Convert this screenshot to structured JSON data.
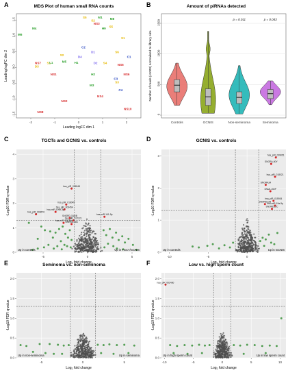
{
  "colors": {
    "panel_bg": "#ebebeb",
    "grid": "#ffffff",
    "up_dot": "#2e8b2e",
    "ns_dot": "#4d4d4d",
    "sig_dot": "#d62728",
    "guide": "#444444",
    "tgct_pink": "#e8706a",
    "gcnis_green": "#8aa51a",
    "nonsem_teal": "#1fb5b5",
    "sem_purple": "#c46adf"
  },
  "chart_data": [
    {
      "panel_letter": "A",
      "type": "scatter",
      "title": "MDS Plot of human small RNA counts",
      "xlabel": "Leading logFC dim 1",
      "ylabel": "Leading logFC dim 2",
      "xlim": [
        -2.6,
        2.6
      ],
      "ylim": [
        -1.6,
        1.7
      ],
      "xticks": [
        "-2",
        "-1",
        "0",
        "1",
        "2"
      ],
      "yticks": [
        "-1.5",
        "-1.0",
        "-0.5",
        "0.0",
        "0.5",
        "1.0",
        "1.5"
      ],
      "grid": false,
      "points": [
        {
          "label": "M1",
          "x": 0.9,
          "y": 1.55,
          "color": "#2ca02c"
        },
        {
          "label": "S5",
          "x": 0.25,
          "y": 1.55,
          "color": "#e6b800"
        },
        {
          "label": "S2",
          "x": 0.6,
          "y": 1.45,
          "color": "#e6b800"
        },
        {
          "label": "NS3",
          "x": 0.75,
          "y": 1.35,
          "color": "#d62728"
        },
        {
          "label": "M8",
          "x": 1.4,
          "y": 1.5,
          "color": "#2ca02c"
        },
        {
          "label": "M4",
          "x": -1.85,
          "y": 1.2,
          "color": "#2ca02c"
        },
        {
          "label": "M6",
          "x": -2.45,
          "y": 1.0,
          "color": "#2ca02c"
        },
        {
          "label": "H9",
          "x": 1.05,
          "y": 1.2,
          "color": "#2ca02c"
        },
        {
          "label": "S5",
          "x": 1.35,
          "y": 1.25,
          "color": "#e6b800"
        },
        {
          "label": "S1",
          "x": 1.85,
          "y": 0.9,
          "color": "#e6b800"
        },
        {
          "label": "C2",
          "x": 0.2,
          "y": 0.6,
          "color": "#1f3fbf"
        },
        {
          "label": "D1",
          "x": 0.6,
          "y": 0.45,
          "color": "#7b68ee"
        },
        {
          "label": "S6",
          "x": 1.6,
          "y": 0.45,
          "color": "#e6b800"
        },
        {
          "label": "C1",
          "x": 2.1,
          "y": 0.3,
          "color": "#1f3fbf"
        },
        {
          "label": "S4",
          "x": 1.1,
          "y": 0.1,
          "color": "#e6b800"
        },
        {
          "label": "D2",
          "x": 0.7,
          "y": 0.1,
          "color": "#7b68ee"
        },
        {
          "label": "NS7",
          "x": -1.7,
          "y": 0.1,
          "color": "#d62728"
        },
        {
          "label": "S1",
          "x": -1.25,
          "y": 0.1,
          "color": "#e6b800"
        },
        {
          "label": "M5",
          "x": -0.6,
          "y": 0.15,
          "color": "#2ca02c"
        },
        {
          "label": "H1",
          "x": -0.1,
          "y": 0.12,
          "color": "#2ca02c"
        },
        {
          "label": "L1",
          "x": -1.15,
          "y": 0.12,
          "color": "#2ca02c"
        },
        {
          "label": "D3",
          "x": -1.75,
          "y": 0.0,
          "color": "#e6b800"
        },
        {
          "label": "NS5",
          "x": 1.75,
          "y": 0.05,
          "color": "#d62728"
        },
        {
          "label": "NS1",
          "x": -1.05,
          "y": -0.25,
          "color": "#d62728"
        },
        {
          "label": "C3",
          "x": 1.55,
          "y": -0.4,
          "color": "#1f3fbf"
        },
        {
          "label": "NS6",
          "x": 2.0,
          "y": -0.25,
          "color": "#d62728"
        },
        {
          "label": "NS2",
          "x": -0.6,
          "y": -1.1,
          "color": "#d62728"
        },
        {
          "label": "NS4",
          "x": 0.9,
          "y": -0.95,
          "color": "#d62728"
        },
        {
          "label": "C4",
          "x": 1.75,
          "y": -0.75,
          "color": "#1f3fbf"
        },
        {
          "label": "NS8",
          "x": -1.6,
          "y": -1.45,
          "color": "#d62728"
        },
        {
          "label": "NS10",
          "x": 2.05,
          "y": -1.35,
          "color": "#d62728"
        },
        {
          "label": "M3",
          "x": 0.55,
          "y": -0.6,
          "color": "#2ca02c"
        },
        {
          "label": "H2",
          "x": 0.6,
          "y": -0.25,
          "color": "#2ca02c"
        },
        {
          "label": "S2",
          "x": -0.7,
          "y": 0.35,
          "color": "#e6b800"
        },
        {
          "label": "D4",
          "x": 0.05,
          "y": 0.3,
          "color": "#7b68ee"
        },
        {
          "label": "S3",
          "x": 1.6,
          "y": -0.5,
          "color": "#e6b800"
        }
      ]
    },
    {
      "panel_letter": "B",
      "type": "violin",
      "title": "Amount of piRNAs detected",
      "ylabel": "Number of reads (x1000) normalised to library size",
      "ylim": [
        0,
        1500
      ],
      "yticks": [
        "0",
        "500",
        "1000",
        "1500"
      ],
      "categories": [
        "Controls",
        "GCNIS",
        "Non-seminoma",
        "Seminoma"
      ],
      "groups": [
        {
          "name": "Controls",
          "min": 160,
          "q1": 380,
          "median": 490,
          "q3": 580,
          "max": 850,
          "peak": 470,
          "color_key": "tgct_pink"
        },
        {
          "name": "GCNIS",
          "min": 30,
          "q1": 160,
          "median": 300,
          "q3": 430,
          "max": 1370,
          "peak": 250,
          "color_key": "gcnis_green"
        },
        {
          "name": "Non-seminoma",
          "min": 20,
          "q1": 190,
          "median": 290,
          "q3": 380,
          "max": 810,
          "peak": 330,
          "color_key": "nonsem_teal"
        },
        {
          "name": "Seminoma",
          "min": 170,
          "q1": 270,
          "median": 350,
          "q3": 420,
          "max": 560,
          "peak": 380,
          "color_key": "sem_purple"
        }
      ],
      "annotations": [
        {
          "label": "p = 0.011",
          "category": "Non-seminoma"
        },
        {
          "label": "p = 0.043",
          "category": "Seminoma"
        }
      ]
    },
    {
      "panel_letter": "C",
      "type": "volcano",
      "title": "TGCTs and GCNIS vs. controls",
      "xlabel": "Log2 fold change",
      "ylabel": "-Log10 FDR q-value",
      "xlim": [
        -8,
        6
      ],
      "ylim": [
        0,
        4.2
      ],
      "xticks": [
        -5,
        0,
        5
      ],
      "yticks": [
        0,
        1,
        2,
        3,
        4
      ],
      "vlines": [
        -1.5,
        1.5
      ],
      "hline": 1.3,
      "corner_left": "Up in controls",
      "corner_right": "Up in TGCT/GCNIS",
      "labeled_points": [
        {
          "label": "hsa_piR_026345",
          "x": -1.8,
          "y": 2.6
        },
        {
          "label": "hsa_piR_018045",
          "x": -2.4,
          "y": 1.95
        },
        {
          "label": "hsa_piR_003454",
          "x": -2.6,
          "y": 1.75
        },
        {
          "label": "hsa-miR-199b-3p",
          "x": -3.6,
          "y": 1.65
        },
        {
          "label": "hsa_piR_000676",
          "x": -5.8,
          "y": 1.55
        },
        {
          "label": "SNORD-18A/B",
          "x": -2.0,
          "y": 1.4
        },
        {
          "label": "hsa_piR_017221",
          "x": -1.6,
          "y": 1.3
        },
        {
          "label": "hsa-miR-708-5p",
          "x": -2.7,
          "y": 1.2
        },
        {
          "label": "SNHG6-16S",
          "x": -1.8,
          "y": 1.15
        },
        {
          "label": "hsa-miR-141-5p",
          "x": 1.9,
          "y": 1.45
        }
      ],
      "up_points": [
        [
          -6.6,
          1.2
        ],
        [
          -5.2,
          1.05
        ],
        [
          -4.8,
          0.9
        ],
        [
          -4.2,
          0.85
        ],
        [
          -3.6,
          0.8
        ],
        [
          -3.9,
          0.6
        ],
        [
          -5.6,
          0.55
        ],
        [
          -3.2,
          0.95
        ],
        [
          -2.8,
          1.05
        ],
        [
          -2.5,
          0.75
        ],
        [
          -2.2,
          0.6
        ],
        [
          -2.0,
          0.9
        ],
        [
          -1.8,
          0.5
        ],
        [
          -2.6,
          0.3
        ],
        [
          -3.0,
          0.45
        ],
        [
          -3.4,
          0.25
        ],
        [
          -4.4,
          0.3
        ],
        [
          -4.9,
          0.2
        ],
        [
          -5.6,
          0.15
        ],
        [
          -6.2,
          0.1
        ],
        [
          -2.3,
          0.25
        ],
        [
          -1.9,
          0.2
        ],
        [
          -3.8,
          0.15
        ],
        [
          -2.9,
          0.12
        ],
        [
          1.8,
          0.9
        ],
        [
          2.1,
          0.7
        ],
        [
          2.5,
          0.95
        ],
        [
          2.8,
          0.6
        ],
        [
          3.2,
          0.8
        ],
        [
          3.5,
          0.5
        ],
        [
          3.9,
          0.65
        ],
        [
          4.2,
          0.4
        ],
        [
          4.6,
          0.55
        ],
        [
          5.1,
          0.3
        ],
        [
          2.3,
          0.35
        ],
        [
          2.9,
          0.25
        ],
        [
          1.9,
          0.2
        ],
        [
          3.3,
          0.15
        ],
        [
          4.0,
          0.12
        ],
        [
          5.5,
          0.1
        ]
      ]
    },
    {
      "panel_letter": "D",
      "type": "volcano",
      "title": "GCNIS vs. controls",
      "xlabel": "Log2 fold change",
      "ylabel": "-Log10 FDR q-value",
      "xlim": [
        -11,
        5
      ],
      "ylim": [
        0,
        3.2
      ],
      "xticks": [
        -10,
        -5,
        0
      ],
      "yticks": [
        0,
        1,
        2,
        3
      ],
      "vlines": [
        -1.5,
        1.5
      ],
      "hline": 1.3,
      "corner_left": "Up in controls",
      "corner_right": "Up in GCNIS",
      "labeled_points": [
        {
          "label": "hsa_piR_009051",
          "x": 3.7,
          "y": 2.95
        },
        {
          "label": "SNORA-60Y",
          "x": 3.1,
          "y": 2.75
        },
        {
          "label": "hsa_piR_018021",
          "x": 3.6,
          "y": 2.35
        },
        {
          "label": "SNORA34",
          "x": 2.4,
          "y": 2.1
        },
        {
          "label": "SNU6-150P",
          "x": 3.0,
          "y": 1.9
        },
        {
          "label": "hsa_piR_015934",
          "x": 3.4,
          "y": 1.6
        },
        {
          "label": "SNORD12B",
          "x": 2.3,
          "y": 1.5
        },
        {
          "label": "hsa-miR-19a-5p",
          "x": 3.6,
          "y": 1.45
        },
        {
          "label": "SNORD12C",
          "x": 3.2,
          "y": 1.35
        }
      ],
      "up_points": [
        [
          -7.0,
          0.18
        ],
        [
          -6.2,
          0.15
        ],
        [
          -5.1,
          0.2
        ],
        [
          -4.4,
          0.25
        ],
        [
          -3.6,
          0.12
        ],
        [
          -2.9,
          0.22
        ],
        [
          -2.2,
          0.15
        ],
        [
          -1.8,
          0.3
        ],
        [
          1.7,
          0.35
        ],
        [
          2.0,
          0.45
        ],
        [
          2.4,
          0.4
        ],
        [
          2.8,
          0.55
        ],
        [
          3.1,
          0.3
        ],
        [
          3.5,
          0.25
        ],
        [
          3.9,
          0.6
        ],
        [
          2.2,
          0.2
        ]
      ]
    },
    {
      "panel_letter": "E",
      "type": "volcano",
      "title": "Seminoma vs. non-seminoma",
      "xlabel": "Log2 fold change",
      "ylabel": "-Log10 FDR q-value",
      "xlim": [
        -8,
        7
      ],
      "ylim": [
        0,
        2.15
      ],
      "xticks": [
        -5,
        0,
        5
      ],
      "yticks": [
        0.0,
        0.5,
        1.0,
        1.5,
        2.0
      ],
      "vlines": [
        -1.5,
        1.5
      ],
      "hline": 1.3,
      "corner_left": "Up in non-seminoma",
      "corner_right": "Up in seminoma",
      "labeled_points": [],
      "up_points": [
        [
          -7.5,
          0.32
        ],
        [
          -6.8,
          0.3
        ],
        [
          -5.2,
          0.35
        ],
        [
          -4.0,
          0.35
        ],
        [
          -3.0,
          0.33
        ],
        [
          -2.3,
          0.31
        ],
        [
          -1.7,
          0.32
        ],
        [
          1.8,
          0.33
        ],
        [
          2.5,
          0.32
        ],
        [
          3.2,
          0.34
        ],
        [
          4.1,
          0.32
        ],
        [
          5.0,
          0.33
        ],
        [
          6.2,
          0.31
        ],
        [
          -6.0,
          0.15
        ],
        [
          -4.5,
          0.12
        ],
        [
          -3.5,
          0.1
        ],
        [
          -2.5,
          0.1
        ],
        [
          2.2,
          0.12
        ],
        [
          3.7,
          0.1
        ],
        [
          5.5,
          0.12
        ]
      ]
    },
    {
      "panel_letter": "F",
      "type": "volcano",
      "title": "Low vs. high sperm count",
      "xlabel": "Log2 fold change",
      "ylabel": "-Log10 FDR q-value",
      "xlim": [
        -10.5,
        11
      ],
      "ylim": [
        0,
        2.15
      ],
      "xticks": [
        -10,
        -5,
        0,
        5,
        10
      ],
      "yticks": [
        0.0,
        0.5,
        1.0,
        1.5,
        2.0
      ],
      "vlines": [
        -1.5,
        1.5
      ],
      "hline": 1.3,
      "corner_left": "Up in high sperm count",
      "corner_right": "Up in low sperm count",
      "labeled_points": [
        {
          "label": "hsa_piR_002430",
          "x": -9.8,
          "y": 1.85
        }
      ],
      "up_points": [
        [
          -9.0,
          0.32
        ],
        [
          -7.8,
          0.3
        ],
        [
          -6.5,
          0.32
        ],
        [
          -5.2,
          0.31
        ],
        [
          -4.0,
          0.33
        ],
        [
          -3.0,
          0.31
        ],
        [
          -2.2,
          0.32
        ],
        [
          2.0,
          0.32
        ],
        [
          3.1,
          0.31
        ],
        [
          4.3,
          0.33
        ],
        [
          5.6,
          0.32
        ],
        [
          6.9,
          0.3
        ],
        [
          8.2,
          0.31
        ],
        [
          9.4,
          0.3
        ],
        [
          10.2,
          1.0
        ],
        [
          -8.4,
          0.12
        ],
        [
          -6.0,
          0.1
        ],
        [
          -3.5,
          0.12
        ],
        [
          3.7,
          0.1
        ],
        [
          7.5,
          0.12
        ]
      ]
    }
  ]
}
